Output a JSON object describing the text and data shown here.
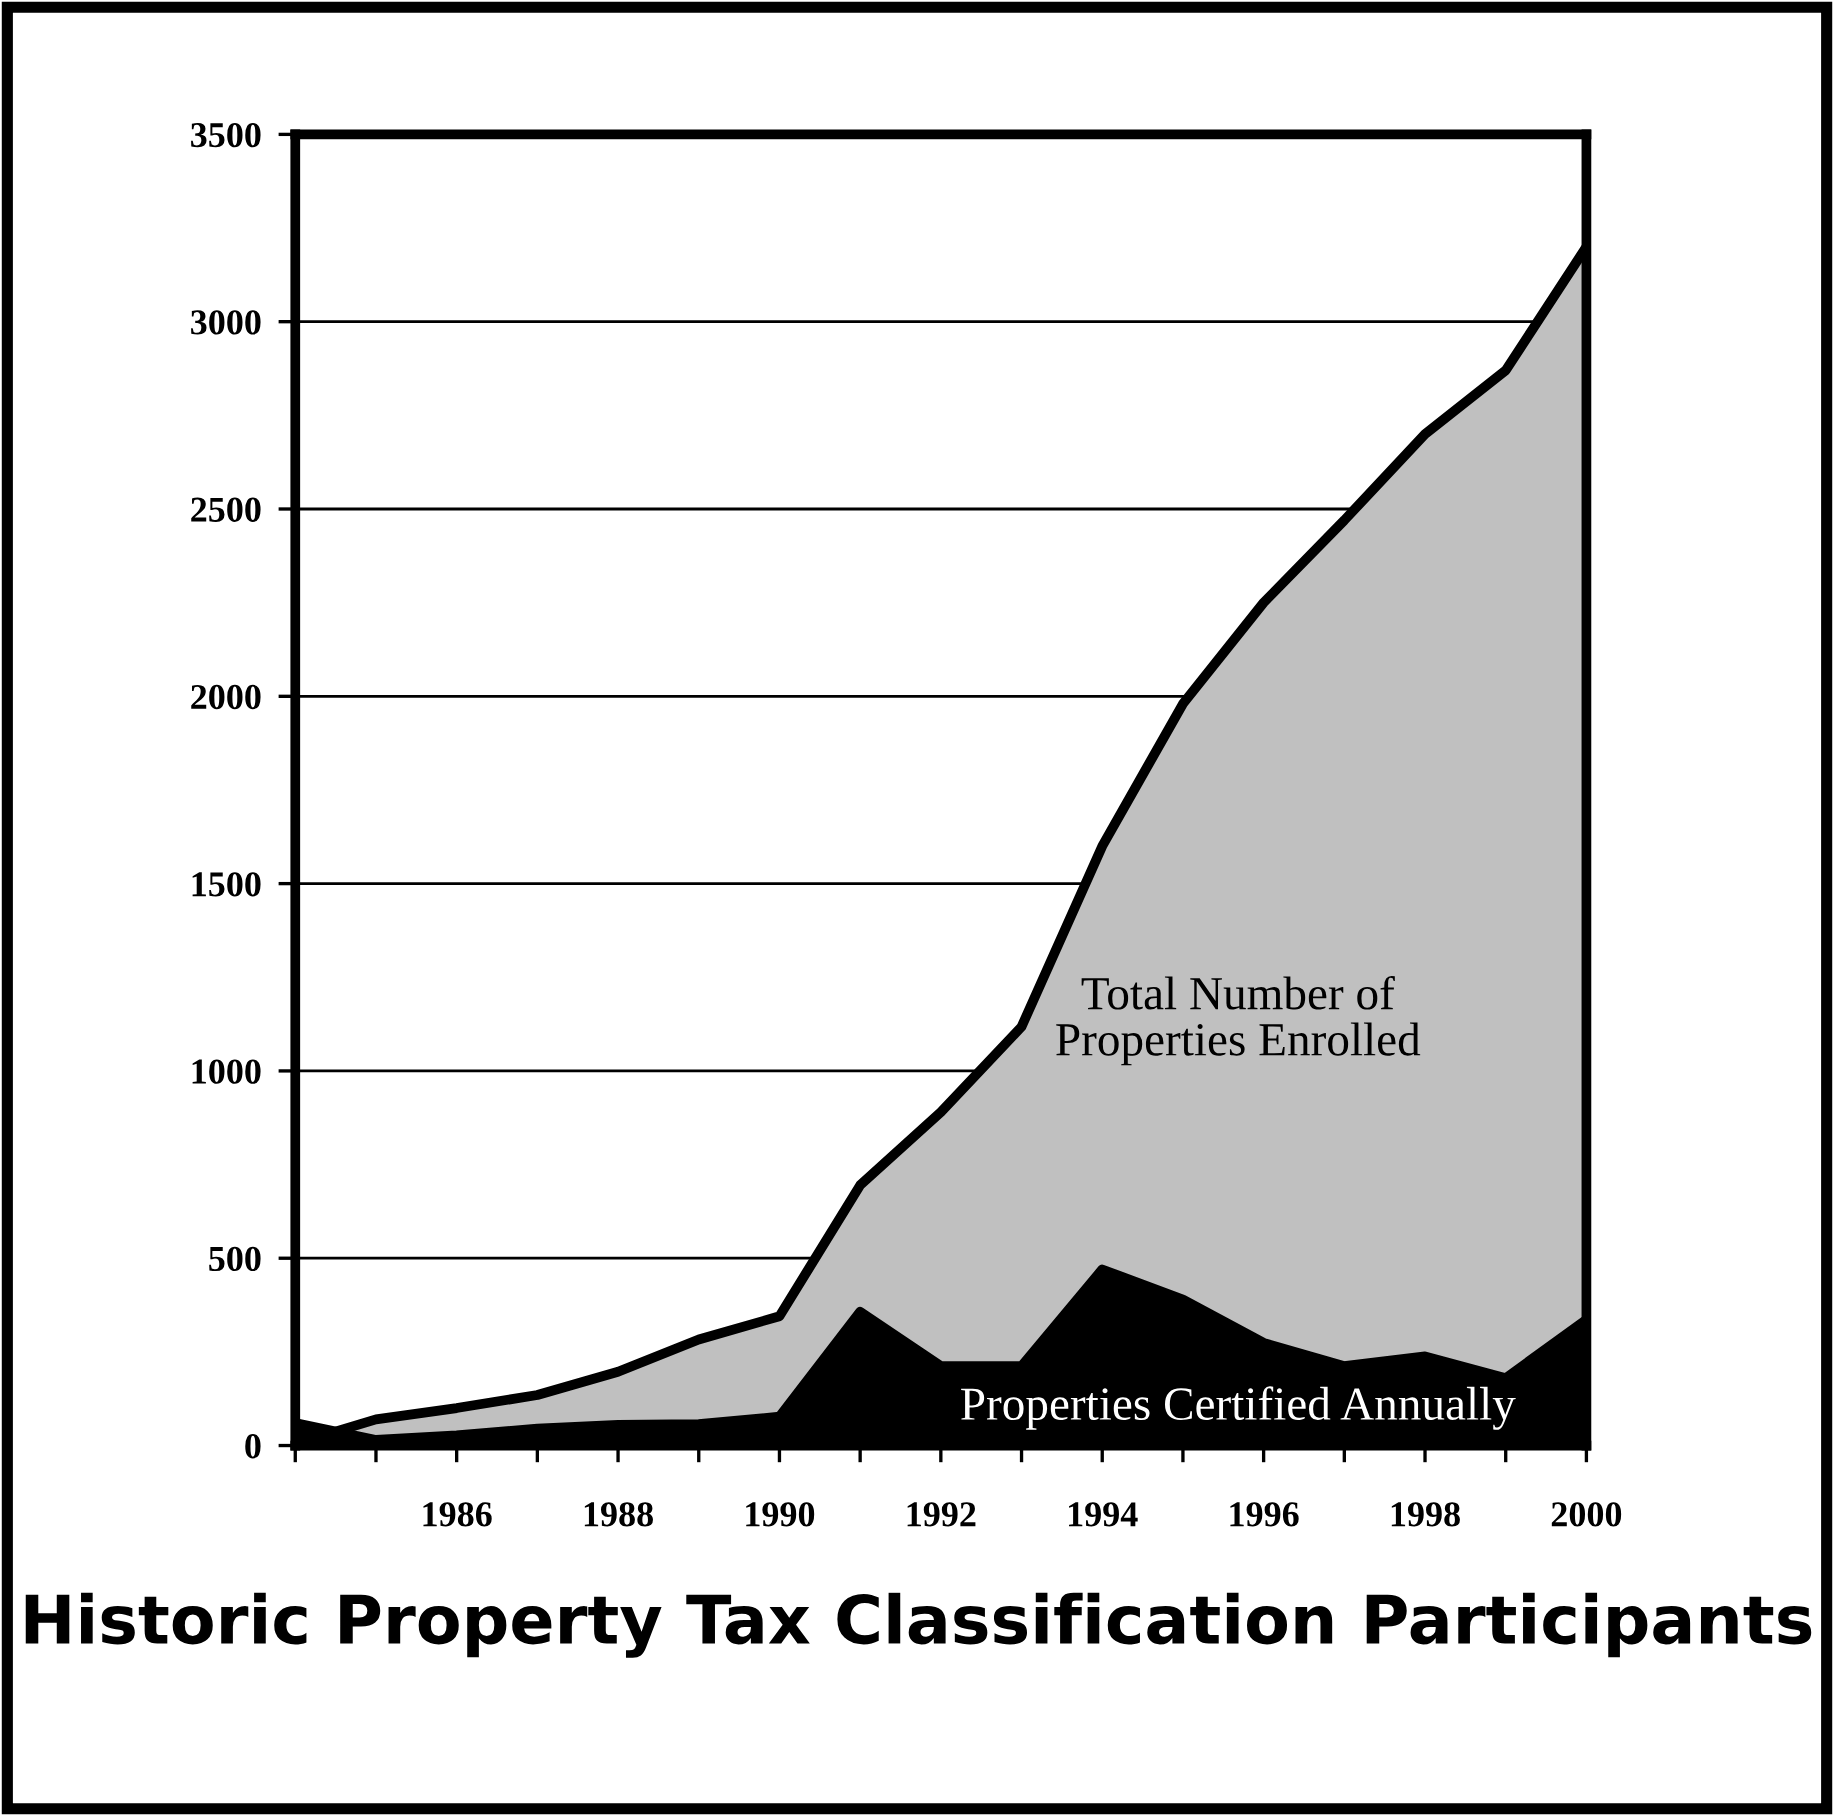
{
  "chart_data": {
    "type": "area",
    "title": "Historic Property Tax Classification Participants",
    "x": [
      1984,
      1985,
      1986,
      1987,
      1988,
      1989,
      1990,
      1991,
      1992,
      1993,
      1994,
      1995,
      1996,
      1997,
      1998,
      1999,
      2000
    ],
    "series": [
      {
        "name": "Total Number of Properties Enrolled",
        "color": "#c0c0c0",
        "values": [
          5,
          70,
          100,
          135,
          197,
          283,
          345,
          695,
          890,
          1118,
          1600,
          1980,
          2250,
          2470,
          2700,
          2870,
          3200
        ]
      },
      {
        "name": "Properties Certified Annually",
        "color": "#000000",
        "values": [
          60,
          15,
          27,
          45,
          55,
          57,
          77,
          357,
          212,
          212,
          470,
          390,
          274,
          212,
          238,
          180,
          336
        ]
      }
    ],
    "xlim": [
      1984,
      2000
    ],
    "xticks": [
      {
        "value": 1984,
        "label": null
      },
      {
        "value": 1985,
        "label": null
      },
      1986,
      {
        "value": 1987,
        "label": null
      },
      1988,
      {
        "value": 1989,
        "label": null
      },
      1990,
      {
        "value": 1991,
        "label": null
      },
      1992,
      {
        "value": 1993,
        "label": null
      },
      1994,
      {
        "value": 1995,
        "label": null
      },
      1996,
      {
        "value": 1997,
        "label": null
      },
      1998,
      {
        "value": 1999,
        "label": null
      },
      2000
    ],
    "ylim": [
      0,
      3500
    ],
    "yticks": [
      0,
      500,
      1000,
      1500,
      2000,
      2500,
      3000,
      3500
    ],
    "grid": "y",
    "legend": false
  }
}
